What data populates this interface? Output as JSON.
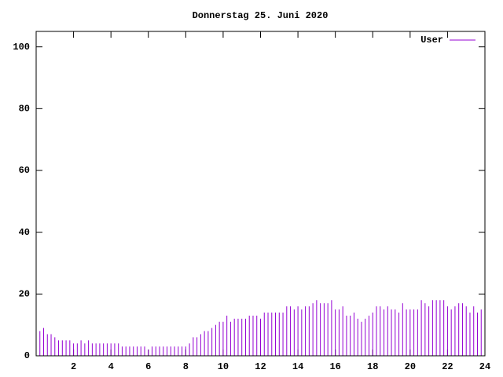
{
  "chart_data": {
    "type": "impulse",
    "title": "Donnerstag 25. Juni 2020",
    "x": [
      0,
      0.2,
      0.4,
      0.6,
      0.8,
      1,
      1.2,
      1.4,
      1.6,
      1.8,
      2,
      2.2,
      2.4,
      2.6,
      2.8,
      3,
      3.2,
      3.4,
      3.6,
      3.8,
      4,
      4.2,
      4.4,
      4.6,
      4.8,
      5,
      5.2,
      5.4,
      5.6,
      5.8,
      6,
      6.2,
      6.4,
      6.6,
      6.8,
      7,
      7.2,
      7.4,
      7.6,
      7.8,
      8,
      8.2,
      8.4,
      8.6,
      8.8,
      9,
      9.2,
      9.4,
      9.6,
      9.8,
      10,
      10.2,
      10.4,
      10.6,
      10.8,
      11,
      11.2,
      11.4,
      11.6,
      11.8,
      12,
      12.2,
      12.4,
      12.6,
      12.8,
      13,
      13.2,
      13.4,
      13.6,
      13.8,
      14,
      14.2,
      14.4,
      14.6,
      14.8,
      15,
      15.2,
      15.4,
      15.6,
      15.8,
      16,
      16.2,
      16.4,
      16.6,
      16.8,
      17,
      17.2,
      17.4,
      17.6,
      17.8,
      18,
      18.2,
      18.4,
      18.6,
      18.8,
      19,
      19.2,
      19.4,
      19.6,
      19.8,
      20,
      20.2,
      20.4,
      20.6,
      20.8,
      21,
      21.2,
      21.4,
      21.6,
      21.8,
      22,
      22.2,
      22.4,
      22.6,
      22.8,
      23,
      23.2,
      23.4,
      23.6,
      23.8
    ],
    "series": [
      {
        "name": "User",
        "color": "#9400d3",
        "values": [
          10,
          8,
          9,
          7,
          7,
          6,
          5,
          5,
          5,
          5,
          4,
          4,
          5,
          4,
          5,
          4,
          4,
          4,
          4,
          4,
          4,
          4,
          4,
          3,
          3,
          3,
          3,
          3,
          3,
          3,
          2,
          3,
          3,
          3,
          3,
          3,
          3,
          3,
          3,
          3,
          3,
          4,
          6,
          6,
          7,
          8,
          8,
          9,
          10,
          11,
          11,
          13,
          11,
          12,
          12,
          12,
          12,
          13,
          13,
          13,
          12,
          14,
          14,
          14,
          14,
          14,
          14,
          16,
          16,
          15,
          16,
          15,
          16,
          16,
          17,
          18,
          17,
          17,
          17,
          18,
          15,
          15,
          16,
          13,
          13,
          14,
          12,
          11,
          12,
          13,
          14,
          16,
          16,
          15,
          16,
          15,
          15,
          14,
          17,
          15,
          15,
          15,
          15,
          18,
          17,
          16,
          18,
          18,
          18,
          18,
          16,
          15,
          16,
          17,
          17,
          16,
          14,
          16,
          14,
          15
        ]
      }
    ],
    "xlim": [
      0,
      24
    ],
    "xticks": [
      2,
      4,
      6,
      8,
      10,
      12,
      14,
      16,
      18,
      20,
      22,
      24
    ],
    "ylim": [
      0,
      105
    ],
    "yticks": [
      0,
      20,
      40,
      60,
      80,
      100
    ],
    "legend": "top-right"
  }
}
